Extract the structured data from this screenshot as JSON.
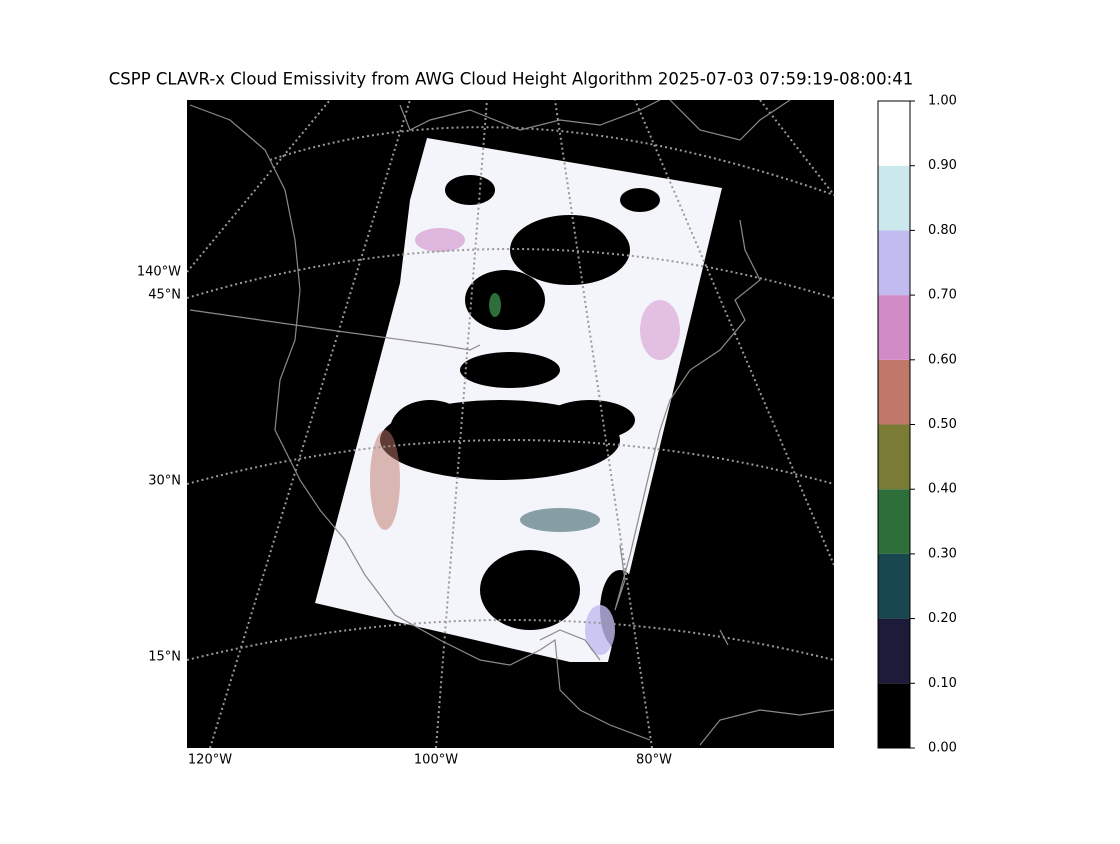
{
  "map": {
    "title": "CSPP CLAVR-x Cloud Emissivity from AWG Cloud Height Algorithm 2025-07-03 07:59:19-08:00:41",
    "lat_labels": [
      "45°N",
      "30°N",
      "15°N"
    ],
    "lon_labels_left": [
      "140°W"
    ],
    "lon_labels_bottom": [
      "120°W",
      "100°W",
      "80°W"
    ],
    "colorbar": {
      "ylim": [
        0,
        1
      ],
      "yticks": [
        {
          "value": 0,
          "label": "0.00"
        },
        {
          "value": 0.1,
          "label": "0.10"
        },
        {
          "value": 0.2,
          "label": "0.20"
        },
        {
          "value": 0.3,
          "label": "0.30"
        },
        {
          "value": 0.4,
          "label": "0.40"
        },
        {
          "value": 0.5,
          "label": "0.50"
        },
        {
          "value": 0.6,
          "label": "0.60"
        },
        {
          "value": 0.7,
          "label": "0.70"
        },
        {
          "value": 0.8,
          "label": "0.80"
        },
        {
          "value": 0.9,
          "label": "0.90"
        },
        {
          "value": 1,
          "label": "1.00"
        }
      ],
      "colors": [
        "#000000",
        "#1e1a3a",
        "#19474f",
        "#2e6e3a",
        "#7a7c35",
        "#c0786b",
        "#d18cc8",
        "#c2bbf0",
        "#cbe9ec",
        "#ffffff"
      ]
    }
  }
}
